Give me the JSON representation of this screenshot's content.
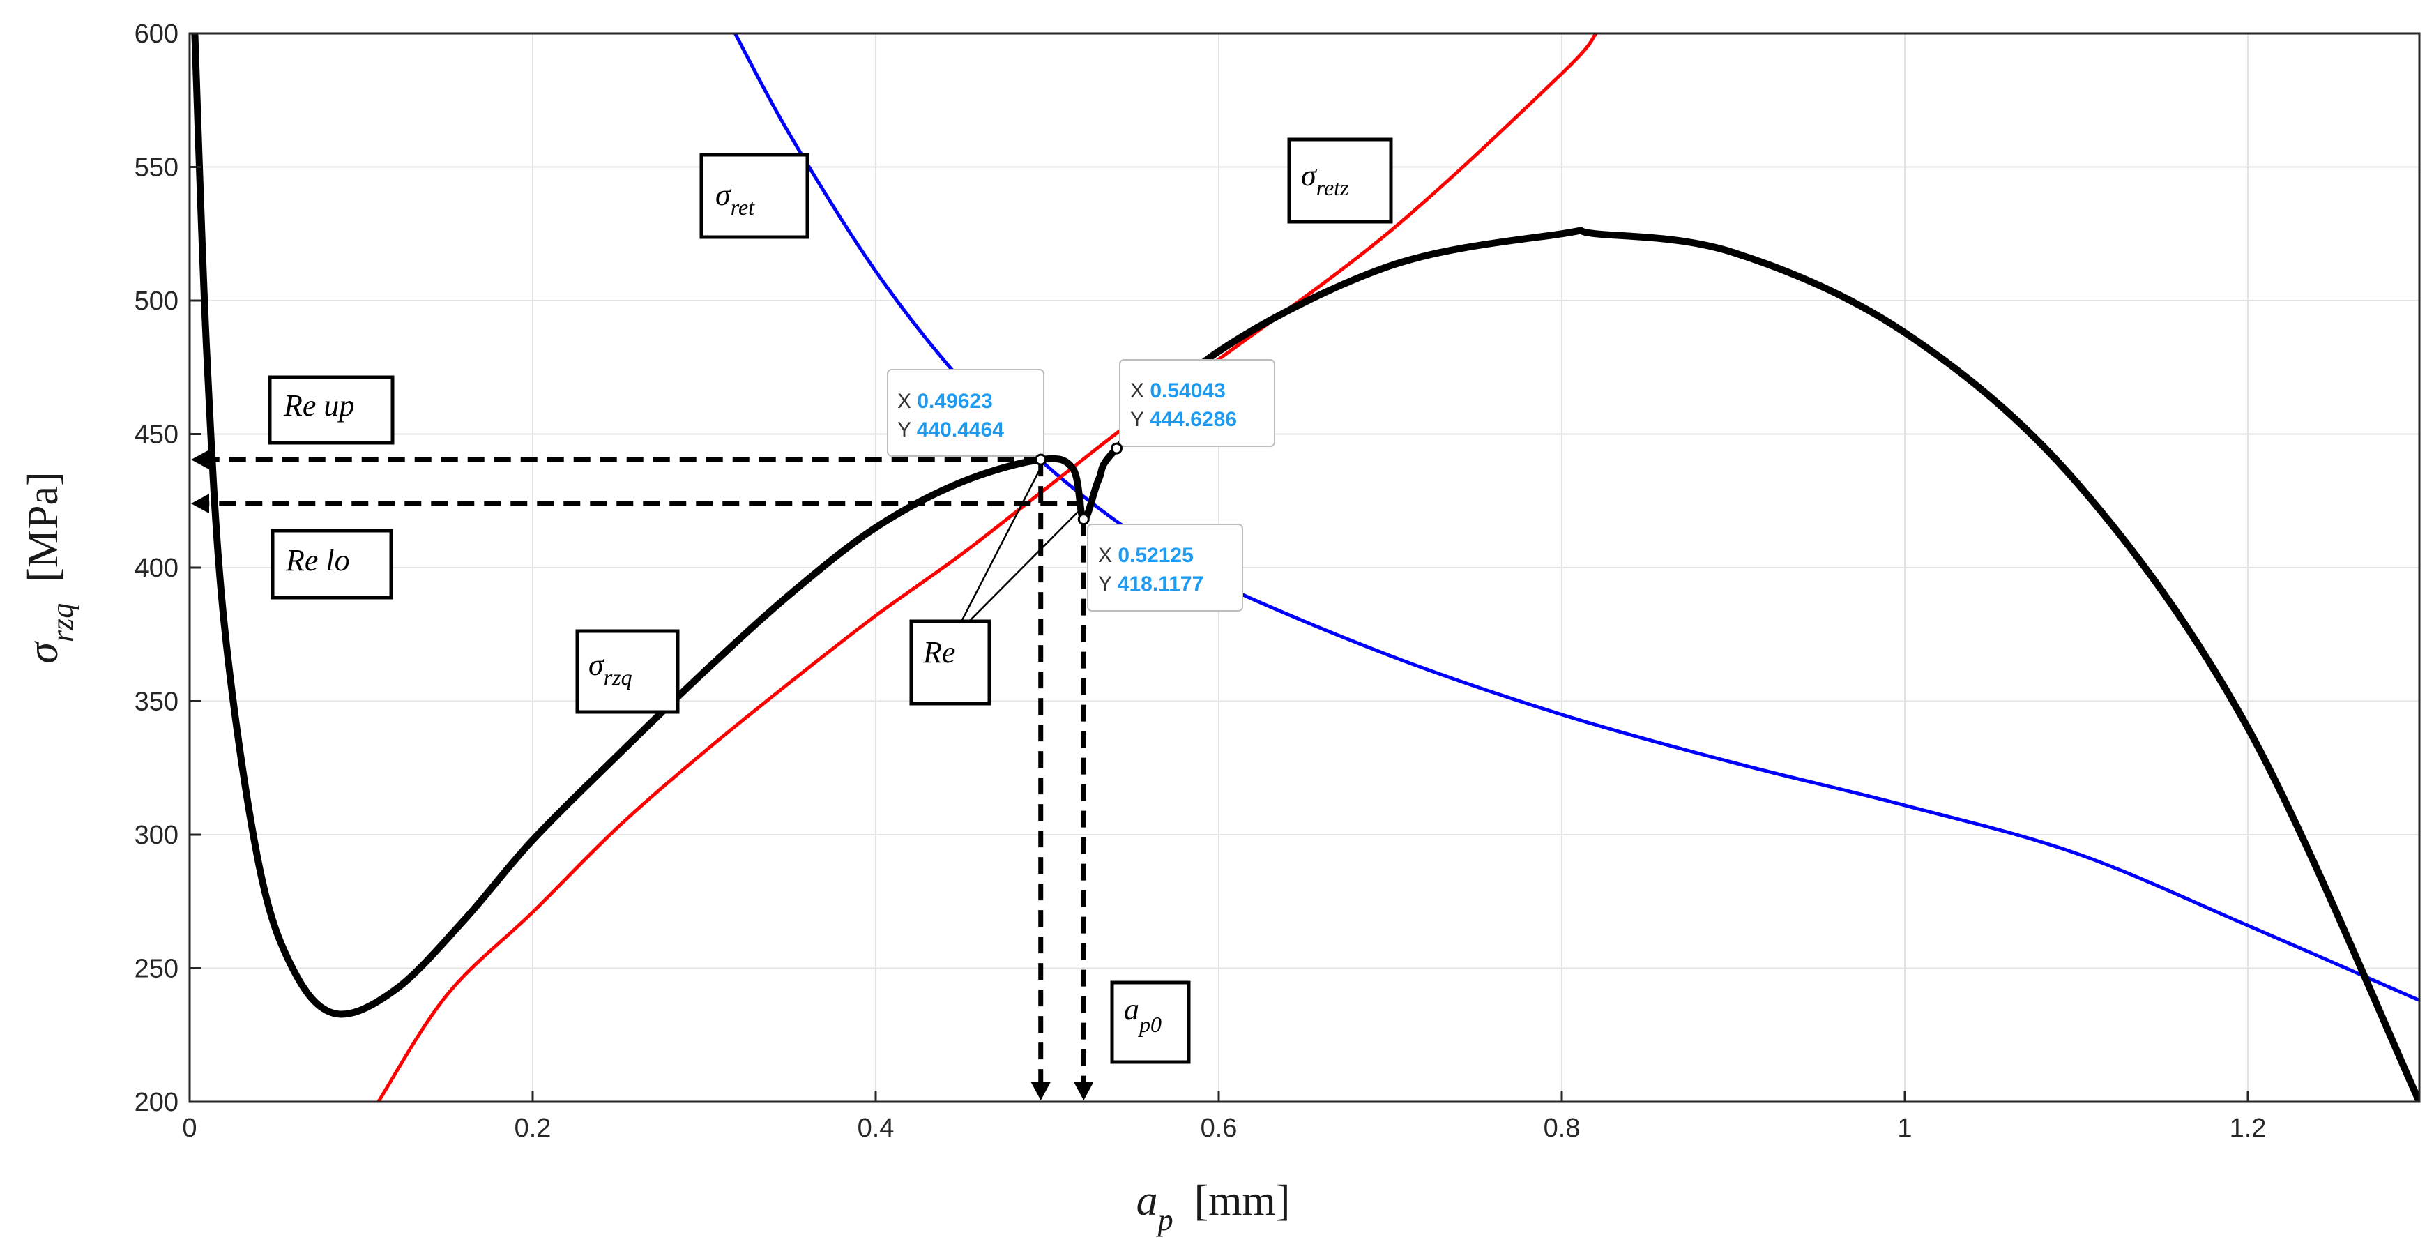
{
  "chart_data": {
    "type": "line",
    "xlabel_main": "a",
    "xlabel_sub": "p",
    "xlabel_unit": "[mm]",
    "ylabel_main": "σ",
    "ylabel_sub": "rzq",
    "ylabel_unit": "[MPa]",
    "xlim": [
      0,
      1.3
    ],
    "ylim": [
      200,
      600
    ],
    "xticks": [
      0,
      0.2,
      0.4,
      0.6,
      0.8,
      1,
      1.2
    ],
    "xtick_labels": [
      "0",
      "0.2",
      "0.4",
      "0.6",
      "0.8",
      "1",
      "1.2"
    ],
    "yticks": [
      200,
      250,
      300,
      350,
      400,
      450,
      500,
      550,
      600
    ],
    "ytick_labels": [
      "200",
      "250",
      "300",
      "350",
      "400",
      "450",
      "500",
      "550",
      "600"
    ],
    "grid": true,
    "series": [
      {
        "name": "σ_ret",
        "color": "#0000ff",
        "x": [
          0.318,
          0.35,
          0.4,
          0.45,
          0.5,
          0.55,
          0.6,
          0.7,
          0.8,
          0.9,
          1.0,
          1.1,
          1.2,
          1.3
        ],
        "y": [
          600,
          562,
          511,
          470,
          438,
          413,
          394,
          367,
          345,
          327,
          311,
          293,
          266,
          238
        ]
      },
      {
        "name": "σ_retz",
        "color": "#ff0000",
        "x": [
          0.11,
          0.15,
          0.2,
          0.25,
          0.3,
          0.35,
          0.4,
          0.45,
          0.5,
          0.55,
          0.6,
          0.7,
          0.8,
          0.82
        ],
        "y": [
          200,
          240,
          271,
          303,
          331,
          357,
          382,
          405,
          430,
          455,
          478,
          526,
          585,
          600
        ]
      },
      {
        "name": "σ_rzq",
        "color": "#000000",
        "x": [
          0.003,
          0.01,
          0.02,
          0.04,
          0.06,
          0.085,
          0.12,
          0.16,
          0.2,
          0.25,
          0.3,
          0.35,
          0.4,
          0.45,
          0.49623,
          0.515,
          0.52125,
          0.53,
          0.54043,
          0.6,
          0.7,
          0.8,
          0.82,
          0.9,
          1.0,
          1.1,
          1.2,
          1.3
        ],
        "y": [
          600,
          480,
          380,
          290,
          250,
          233,
          242,
          268,
          298,
          330,
          361,
          390,
          415,
          432,
          440.4464,
          437,
          418.1177,
          433,
          444.6286,
          481,
          513,
          525,
          525,
          518,
          488,
          432,
          340,
          200
        ]
      }
    ],
    "annotations": [
      {
        "label_main": "σ",
        "label_sub": "ret"
      },
      {
        "label_main": "σ",
        "label_sub": "retz"
      },
      {
        "label_main": "σ",
        "label_sub": "rzq"
      },
      {
        "label_main": "Re up"
      },
      {
        "label_main": "Re lo"
      },
      {
        "label_main": "Re"
      },
      {
        "label_main": "a",
        "label_sub": "p0"
      }
    ],
    "datatips": [
      {
        "x": "0.49623",
        "y": "440.4464"
      },
      {
        "x": "0.54043",
        "y": "444.6286"
      },
      {
        "x": "0.52125",
        "y": "418.1177"
      }
    ],
    "datatip_key_x": "X",
    "datatip_key_y": "Y",
    "reference_lines": [
      {
        "from": [
          0.49623,
          440.4464
        ],
        "to_axis": "y"
      },
      {
        "from": [
          0.52125,
          424
        ],
        "to_axis": "y"
      },
      {
        "from": [
          0.49623,
          440.4464
        ],
        "to_axis": "x"
      },
      {
        "from": [
          0.52125,
          418.1177
        ],
        "to_axis": "x"
      }
    ]
  }
}
